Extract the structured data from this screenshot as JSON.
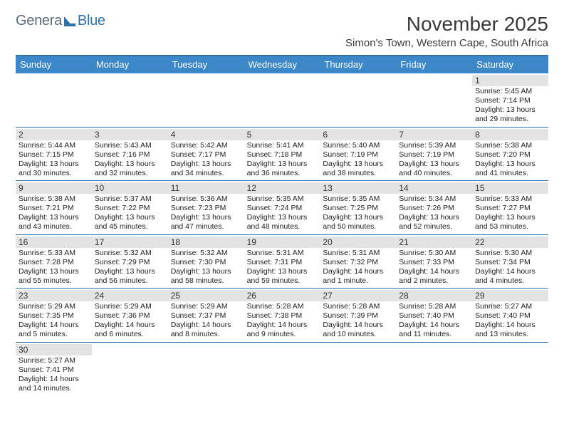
{
  "logo": {
    "part1": "Genera",
    "part2": "Blue"
  },
  "title": {
    "month": "November 2025",
    "location": "Simon's Town, Western Cape, South Africa"
  },
  "colors": {
    "header_bg": "#3b87c8",
    "header_border": "#2f71a8",
    "daynum_bg": "#e3e3e3",
    "text": "#3a3a3a",
    "logo_gray": "#5a6b7a",
    "logo_blue": "#2f71a8"
  },
  "dayNames": [
    "Sunday",
    "Monday",
    "Tuesday",
    "Wednesday",
    "Thursday",
    "Friday",
    "Saturday"
  ],
  "weeks": [
    [
      {
        "n": "",
        "sr": "",
        "ss": "",
        "dl": ""
      },
      {
        "n": "",
        "sr": "",
        "ss": "",
        "dl": ""
      },
      {
        "n": "",
        "sr": "",
        "ss": "",
        "dl": ""
      },
      {
        "n": "",
        "sr": "",
        "ss": "",
        "dl": ""
      },
      {
        "n": "",
        "sr": "",
        "ss": "",
        "dl": ""
      },
      {
        "n": "",
        "sr": "",
        "ss": "",
        "dl": ""
      },
      {
        "n": "1",
        "sr": "Sunrise: 5:45 AM",
        "ss": "Sunset: 7:14 PM",
        "dl": "Daylight: 13 hours and 29 minutes."
      }
    ],
    [
      {
        "n": "2",
        "sr": "Sunrise: 5:44 AM",
        "ss": "Sunset: 7:15 PM",
        "dl": "Daylight: 13 hours and 30 minutes."
      },
      {
        "n": "3",
        "sr": "Sunrise: 5:43 AM",
        "ss": "Sunset: 7:16 PM",
        "dl": "Daylight: 13 hours and 32 minutes."
      },
      {
        "n": "4",
        "sr": "Sunrise: 5:42 AM",
        "ss": "Sunset: 7:17 PM",
        "dl": "Daylight: 13 hours and 34 minutes."
      },
      {
        "n": "5",
        "sr": "Sunrise: 5:41 AM",
        "ss": "Sunset: 7:18 PM",
        "dl": "Daylight: 13 hours and 36 minutes."
      },
      {
        "n": "6",
        "sr": "Sunrise: 5:40 AM",
        "ss": "Sunset: 7:19 PM",
        "dl": "Daylight: 13 hours and 38 minutes."
      },
      {
        "n": "7",
        "sr": "Sunrise: 5:39 AM",
        "ss": "Sunset: 7:19 PM",
        "dl": "Daylight: 13 hours and 40 minutes."
      },
      {
        "n": "8",
        "sr": "Sunrise: 5:38 AM",
        "ss": "Sunset: 7:20 PM",
        "dl": "Daylight: 13 hours and 41 minutes."
      }
    ],
    [
      {
        "n": "9",
        "sr": "Sunrise: 5:38 AM",
        "ss": "Sunset: 7:21 PM",
        "dl": "Daylight: 13 hours and 43 minutes."
      },
      {
        "n": "10",
        "sr": "Sunrise: 5:37 AM",
        "ss": "Sunset: 7:22 PM",
        "dl": "Daylight: 13 hours and 45 minutes."
      },
      {
        "n": "11",
        "sr": "Sunrise: 5:36 AM",
        "ss": "Sunset: 7:23 PM",
        "dl": "Daylight: 13 hours and 47 minutes."
      },
      {
        "n": "12",
        "sr": "Sunrise: 5:35 AM",
        "ss": "Sunset: 7:24 PM",
        "dl": "Daylight: 13 hours and 48 minutes."
      },
      {
        "n": "13",
        "sr": "Sunrise: 5:35 AM",
        "ss": "Sunset: 7:25 PM",
        "dl": "Daylight: 13 hours and 50 minutes."
      },
      {
        "n": "14",
        "sr": "Sunrise: 5:34 AM",
        "ss": "Sunset: 7:26 PM",
        "dl": "Daylight: 13 hours and 52 minutes."
      },
      {
        "n": "15",
        "sr": "Sunrise: 5:33 AM",
        "ss": "Sunset: 7:27 PM",
        "dl": "Daylight: 13 hours and 53 minutes."
      }
    ],
    [
      {
        "n": "16",
        "sr": "Sunrise: 5:33 AM",
        "ss": "Sunset: 7:28 PM",
        "dl": "Daylight: 13 hours and 55 minutes."
      },
      {
        "n": "17",
        "sr": "Sunrise: 5:32 AM",
        "ss": "Sunset: 7:29 PM",
        "dl": "Daylight: 13 hours and 56 minutes."
      },
      {
        "n": "18",
        "sr": "Sunrise: 5:32 AM",
        "ss": "Sunset: 7:30 PM",
        "dl": "Daylight: 13 hours and 58 minutes."
      },
      {
        "n": "19",
        "sr": "Sunrise: 5:31 AM",
        "ss": "Sunset: 7:31 PM",
        "dl": "Daylight: 13 hours and 59 minutes."
      },
      {
        "n": "20",
        "sr": "Sunrise: 5:31 AM",
        "ss": "Sunset: 7:32 PM",
        "dl": "Daylight: 14 hours and 1 minute."
      },
      {
        "n": "21",
        "sr": "Sunrise: 5:30 AM",
        "ss": "Sunset: 7:33 PM",
        "dl": "Daylight: 14 hours and 2 minutes."
      },
      {
        "n": "22",
        "sr": "Sunrise: 5:30 AM",
        "ss": "Sunset: 7:34 PM",
        "dl": "Daylight: 14 hours and 4 minutes."
      }
    ],
    [
      {
        "n": "23",
        "sr": "Sunrise: 5:29 AM",
        "ss": "Sunset: 7:35 PM",
        "dl": "Daylight: 14 hours and 5 minutes."
      },
      {
        "n": "24",
        "sr": "Sunrise: 5:29 AM",
        "ss": "Sunset: 7:36 PM",
        "dl": "Daylight: 14 hours and 6 minutes."
      },
      {
        "n": "25",
        "sr": "Sunrise: 5:29 AM",
        "ss": "Sunset: 7:37 PM",
        "dl": "Daylight: 14 hours and 8 minutes."
      },
      {
        "n": "26",
        "sr": "Sunrise: 5:28 AM",
        "ss": "Sunset: 7:38 PM",
        "dl": "Daylight: 14 hours and 9 minutes."
      },
      {
        "n": "27",
        "sr": "Sunrise: 5:28 AM",
        "ss": "Sunset: 7:39 PM",
        "dl": "Daylight: 14 hours and 10 minutes."
      },
      {
        "n": "28",
        "sr": "Sunrise: 5:28 AM",
        "ss": "Sunset: 7:40 PM",
        "dl": "Daylight: 14 hours and 11 minutes."
      },
      {
        "n": "29",
        "sr": "Sunrise: 5:27 AM",
        "ss": "Sunset: 7:40 PM",
        "dl": "Daylight: 14 hours and 13 minutes."
      }
    ],
    [
      {
        "n": "30",
        "sr": "Sunrise: 5:27 AM",
        "ss": "Sunset: 7:41 PM",
        "dl": "Daylight: 14 hours and 14 minutes."
      },
      {
        "n": "",
        "sr": "",
        "ss": "",
        "dl": ""
      },
      {
        "n": "",
        "sr": "",
        "ss": "",
        "dl": ""
      },
      {
        "n": "",
        "sr": "",
        "ss": "",
        "dl": ""
      },
      {
        "n": "",
        "sr": "",
        "ss": "",
        "dl": ""
      },
      {
        "n": "",
        "sr": "",
        "ss": "",
        "dl": ""
      },
      {
        "n": "",
        "sr": "",
        "ss": "",
        "dl": ""
      }
    ]
  ]
}
